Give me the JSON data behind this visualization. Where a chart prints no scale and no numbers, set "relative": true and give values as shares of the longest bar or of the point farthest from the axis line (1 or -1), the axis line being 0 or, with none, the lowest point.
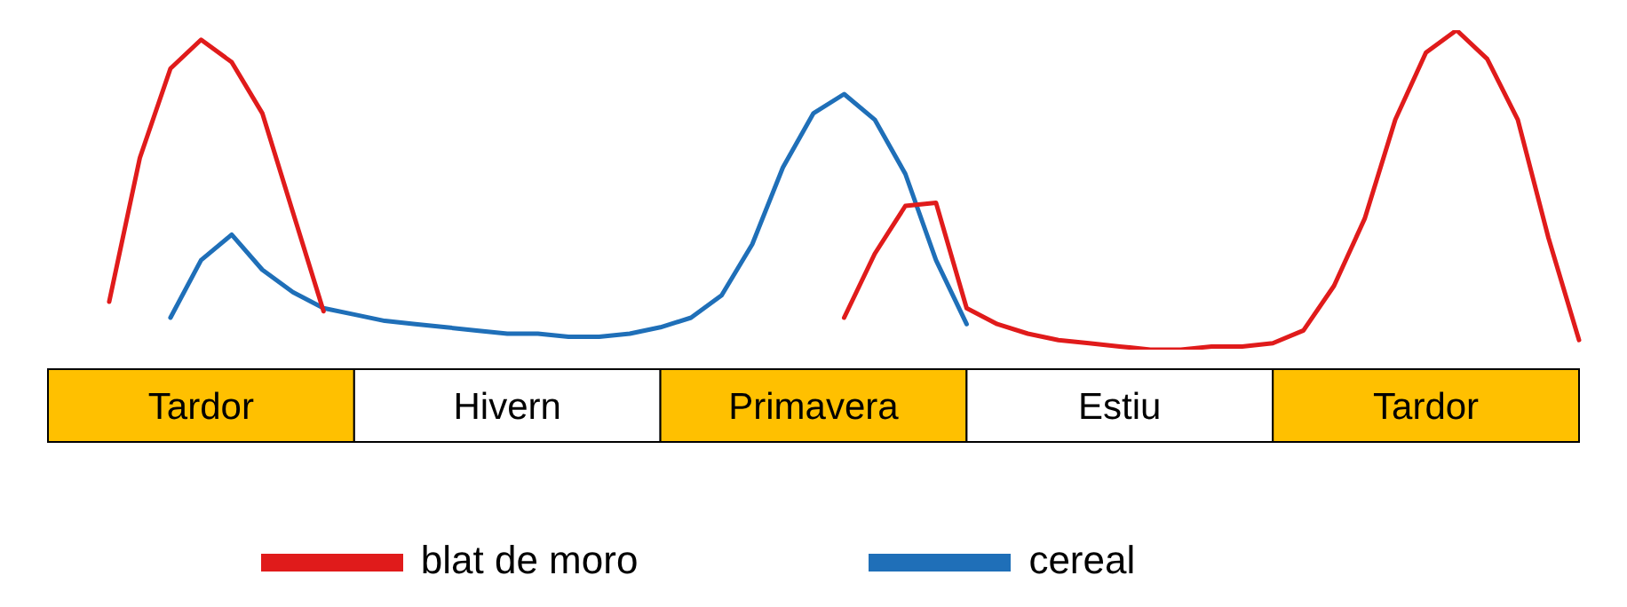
{
  "chart_data": {
    "type": "line",
    "relative": true,
    "legend": "bottom",
    "line_style": "solid",
    "categories": [
      null,
      null,
      null,
      null,
      null,
      "Tardor",
      null,
      null,
      null,
      null,
      null,
      null,
      null,
      null,
      null,
      "Hivern",
      null,
      null,
      null,
      null,
      null,
      null,
      null,
      null,
      null,
      "Primavera",
      null,
      null,
      null,
      null,
      null,
      null,
      null,
      null,
      null,
      "Estiu",
      null,
      null,
      null,
      null,
      null,
      null,
      null,
      null,
      null,
      "Tardor",
      null,
      null,
      null,
      null,
      null
    ],
    "series": [
      {
        "name": "cereal",
        "color": "#1f6fb8",
        "values": [
          null,
          null,
          null,
          null,
          0.1,
          0.28,
          0.36,
          0.25,
          0.18,
          0.13,
          0.11,
          0.09,
          0.08,
          0.07,
          0.06,
          0.05,
          0.05,
          0.04,
          0.04,
          0.05,
          0.07,
          0.1,
          0.17,
          0.33,
          0.57,
          0.74,
          0.8,
          0.72,
          0.55,
          0.28,
          0.08,
          null,
          null,
          null,
          null,
          null,
          null,
          null,
          null,
          null,
          null,
          null,
          null,
          null,
          null,
          null,
          null,
          null,
          null,
          null,
          null
        ]
      },
      {
        "name": "blat de moro",
        "color": "#e01b1b",
        "values": [
          null,
          null,
          0.15,
          0.6,
          0.88,
          0.97,
          0.9,
          0.74,
          0.43,
          0.12,
          null,
          null,
          null,
          null,
          null,
          null,
          null,
          null,
          null,
          null,
          null,
          null,
          null,
          null,
          null,
          null,
          0.1,
          0.3,
          0.45,
          0.46,
          0.13,
          0.08,
          0.05,
          0.03,
          0.02,
          0.01,
          0,
          0,
          0.01,
          0.01,
          0.02,
          0.06,
          0.2,
          0.41,
          0.72,
          0.93,
          1,
          0.91,
          0.72,
          0.35,
          0.03
        ]
      }
    ]
  }
}
